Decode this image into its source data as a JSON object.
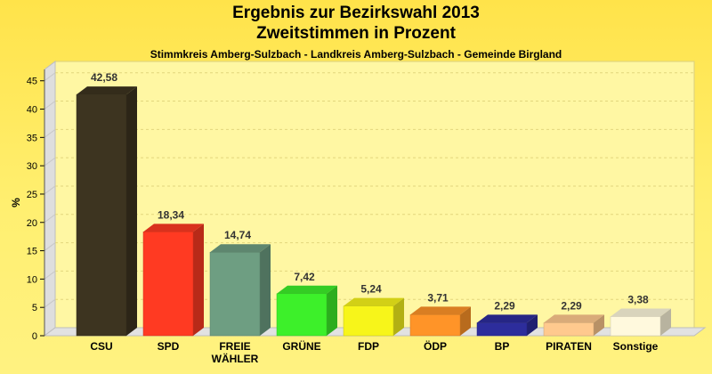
{
  "chart_data": {
    "type": "bar",
    "title": "Ergebnis zur Bezirkswahl 2013",
    "subtitle_line2": "Zweitstimmen in Prozent",
    "subtitle": "Stimmkreis Amberg-Sulzbach - Landkreis Amberg-Sulzbach - Gemeinde Birgland",
    "ylabel": "%",
    "xlabel": "",
    "ylim": [
      0,
      47
    ],
    "yticks": [
      "0",
      "5",
      "10",
      "15",
      "20",
      "25",
      "30",
      "35",
      "40",
      "45"
    ],
    "grid": true,
    "categories": [
      "CSU",
      "SPD",
      "FREIE WÄHLER",
      "GRÜNE",
      "FDP",
      "ÖDP",
      "BP",
      "PIRATEN",
      "Sonstige"
    ],
    "category_lines": [
      [
        "CSU"
      ],
      [
        "SPD"
      ],
      [
        "FREIE",
        "WÄHLER"
      ],
      [
        "GRÜNE"
      ],
      [
        "FDP"
      ],
      [
        "ÖDP"
      ],
      [
        "BP"
      ],
      [
        "PIRATEN"
      ],
      [
        "Sonstige"
      ]
    ],
    "values": [
      42.58,
      18.34,
      14.74,
      7.42,
      5.24,
      3.71,
      2.29,
      2.29,
      3.38
    ],
    "value_labels": [
      "42,58",
      "18,34",
      "14,74",
      "7,42",
      "5,24",
      "3,71",
      "2,29",
      "2,29",
      "3,38"
    ],
    "colors": [
      "#3d3420",
      "#ff3a22",
      "#6e9e82",
      "#3df02a",
      "#f7f51a",
      "#ff9428",
      "#2d2d9c",
      "#ffc98e",
      "#fff9dd"
    ]
  }
}
